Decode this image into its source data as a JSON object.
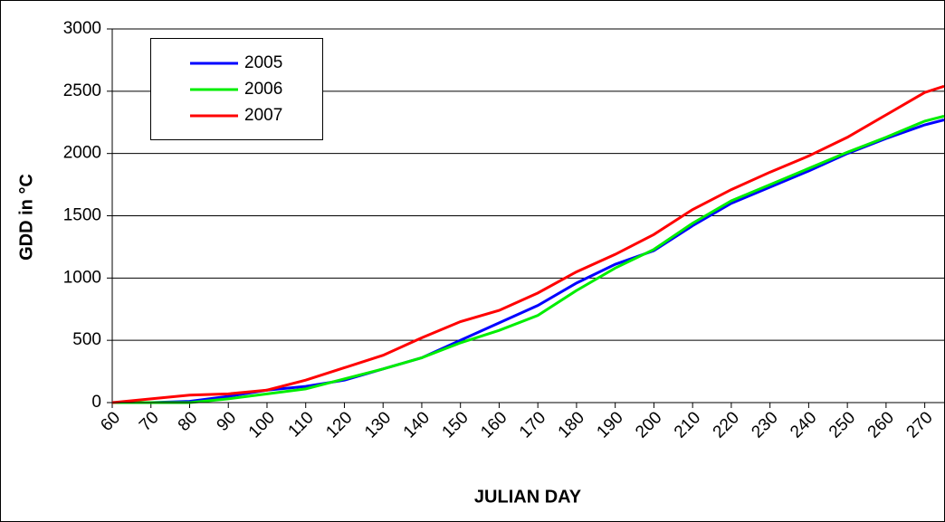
{
  "chart_data": {
    "type": "line",
    "x_label": "JULIAN DAY",
    "y_label": "GDD in °C",
    "x": [
      60,
      70,
      80,
      90,
      100,
      110,
      120,
      130,
      140,
      150,
      160,
      170,
      180,
      190,
      200,
      210,
      220,
      230,
      240,
      250,
      260,
      270,
      275
    ],
    "series": [
      {
        "name": "2005",
        "color": "#0000ff",
        "values": [
          0,
          0,
          10,
          50,
          100,
          130,
          180,
          270,
          360,
          500,
          640,
          780,
          960,
          1110,
          1220,
          1420,
          1600,
          1730,
          1860,
          2000,
          2120,
          2230,
          2270
        ]
      },
      {
        "name": "2006",
        "color": "#00ee00",
        "values": [
          0,
          0,
          0,
          30,
          70,
          110,
          190,
          270,
          360,
          480,
          580,
          700,
          900,
          1080,
          1230,
          1440,
          1620,
          1750,
          1880,
          2010,
          2130,
          2260,
          2300
        ]
      },
      {
        "name": "2007",
        "color": "#ff0000",
        "values": [
          0,
          30,
          60,
          70,
          100,
          180,
          280,
          380,
          520,
          650,
          740,
          880,
          1050,
          1190,
          1350,
          1550,
          1710,
          1850,
          1980,
          2130,
          2310,
          2490,
          2540
        ]
      }
    ],
    "xlim": [
      60,
      275
    ],
    "xticks": [
      60,
      70,
      80,
      90,
      100,
      110,
      120,
      130,
      140,
      150,
      160,
      170,
      180,
      190,
      200,
      210,
      220,
      230,
      240,
      250,
      260,
      270
    ],
    "ylim": [
      0,
      3000
    ],
    "yticks": [
      0,
      500,
      1000,
      1500,
      2000,
      2500,
      3000
    ],
    "grid": true,
    "legend": "upper left"
  }
}
